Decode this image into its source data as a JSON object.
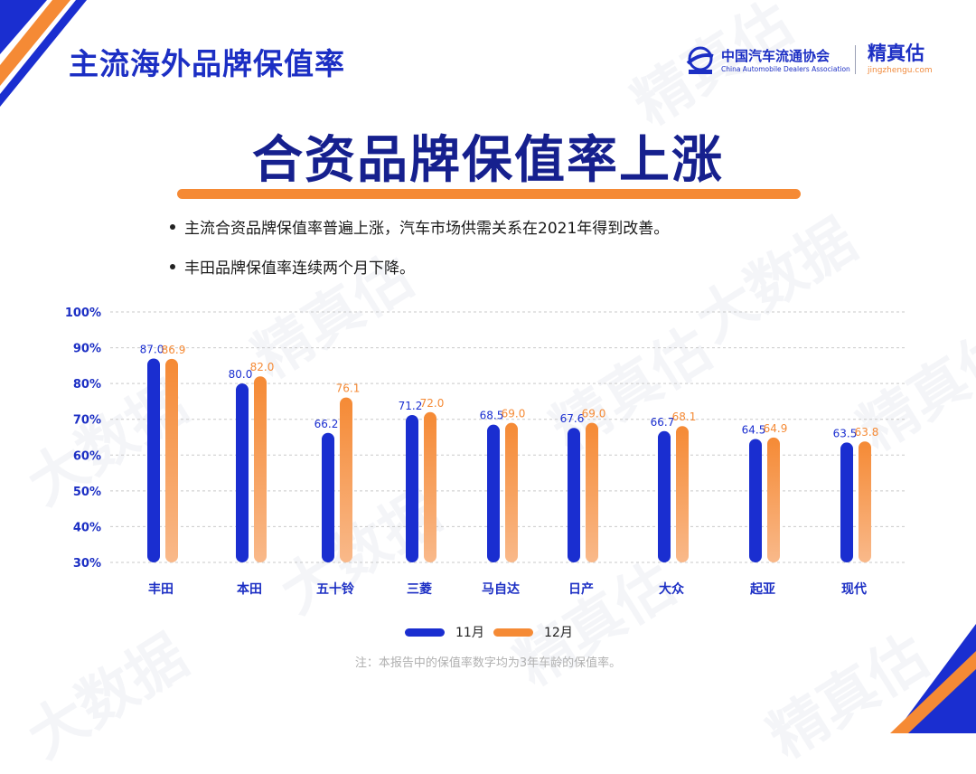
{
  "page_title": "主流海外品牌保值率",
  "logos": {
    "caada_cn": "中国汽车流通协会",
    "caada_en": "China Automobile Dealers Association",
    "jzg_cn": "精真估",
    "jzg_en": "jingzhengu.com"
  },
  "headline": "合资品牌保值率上涨",
  "bullets": [
    "主流合资品牌保值率普遍上涨，汽车市场供需关系在2021年得到改善。",
    "丰田品牌保值率连续两个月下降。"
  ],
  "footnote": "注：本报告中的保值率数字均为3年车龄的保值率。",
  "colors": {
    "blue": "#1a2ed0",
    "orange": "#f58a35",
    "title_blue": "#1c2fc4"
  },
  "chart_data": {
    "type": "bar",
    "categories": [
      "丰田",
      "本田",
      "五十铃",
      "三菱",
      "马自达",
      "日产",
      "大众",
      "起亚",
      "现代"
    ],
    "series": [
      {
        "name": "11月",
        "values": [
          87.0,
          80.0,
          66.2,
          71.2,
          68.5,
          67.6,
          66.7,
          64.5,
          63.5
        ],
        "labels": [
          "87.0",
          "80.0",
          "66.2",
          "71.2",
          "68.5",
          "67.6",
          "66.7",
          "64.5",
          "63.5"
        ]
      },
      {
        "name": "12月",
        "values": [
          86.9,
          82.0,
          76.1,
          72.0,
          69.0,
          69.0,
          68.1,
          64.9,
          63.8
        ],
        "labels": [
          "86.9",
          "82.0",
          "76.1",
          "72.0",
          "69.0",
          "69.0",
          "68.1",
          "64.9",
          "63.8"
        ]
      }
    ],
    "yticks": [
      "30%",
      "40%",
      "50%",
      "60%",
      "70%",
      "80%",
      "90%",
      "100%"
    ],
    "ylim": [
      30,
      100
    ],
    "grid": true,
    "legend_position": "bottom-center"
  }
}
